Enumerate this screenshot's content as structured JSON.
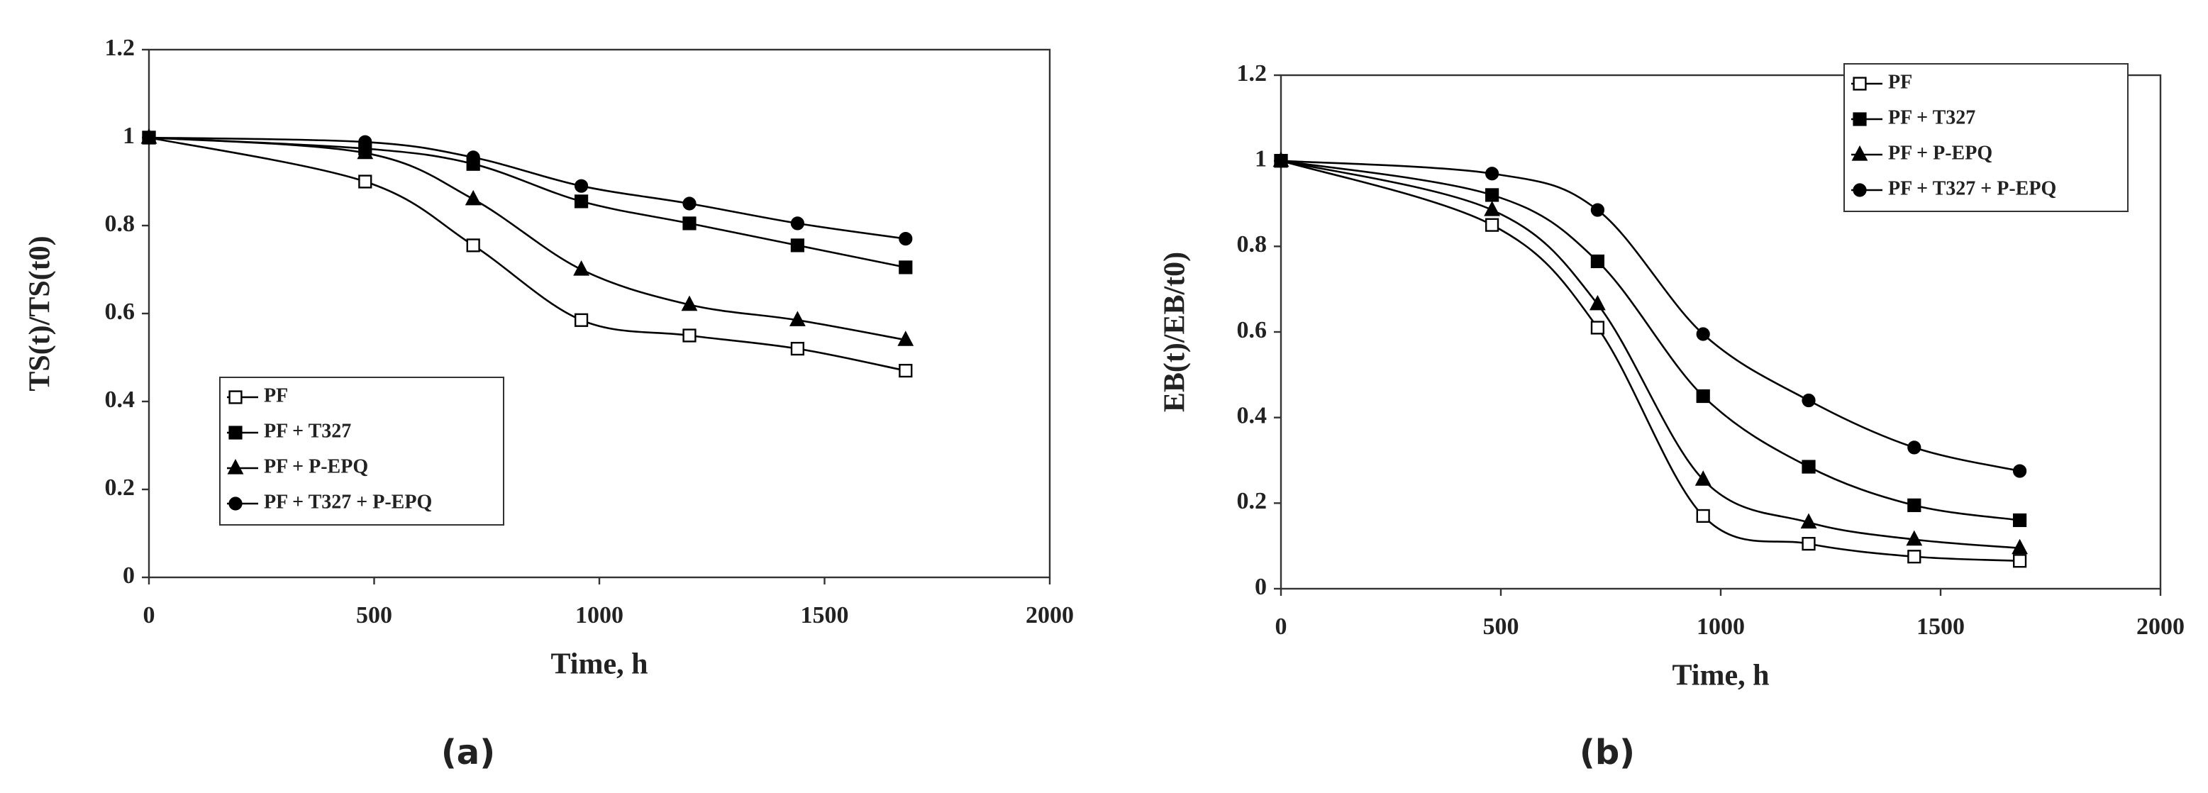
{
  "chart_data": [
    {
      "type": "line",
      "caption": "(a)",
      "x_label": "Time, h",
      "y_label": "TS(t)/TS(t0)",
      "x": [
        0,
        480,
        720,
        960,
        1200,
        1440,
        1680
      ],
      "xlim": [
        0,
        2000
      ],
      "xticks": [
        0,
        500,
        1000,
        1500,
        2000
      ],
      "ylim": [
        0,
        1.2
      ],
      "yticks": [
        0,
        0.2,
        0.4,
        0.6,
        0.8,
        1,
        1.2
      ],
      "grid": false,
      "legend_loc": "lower left",
      "series": [
        {
          "name": "PF",
          "color": "#000000",
          "marker": "open-square",
          "values": [
            1,
            0.9,
            0.755,
            0.585,
            0.55,
            0.52,
            0.47
          ]
        },
        {
          "name": "PF + T327",
          "color": "#000000",
          "marker": "square",
          "values": [
            1,
            0.975,
            0.94,
            0.855,
            0.805,
            0.755,
            0.705
          ]
        },
        {
          "name": "PF + P-EPQ",
          "color": "#000000",
          "marker": "triangle",
          "values": [
            1,
            0.965,
            0.86,
            0.7,
            0.62,
            0.585,
            0.54
          ]
        },
        {
          "name": "PF + T327 + P-EPQ",
          "color": "#000000",
          "marker": "circle",
          "values": [
            1,
            0.99,
            0.955,
            0.89,
            0.85,
            0.805,
            0.77
          ]
        }
      ]
    },
    {
      "type": "line",
      "caption": "(b)",
      "x_label": "Time, h",
      "y_label": "EB(t)/EB/t0)",
      "x": [
        0,
        480,
        720,
        960,
        1200,
        1440,
        1680
      ],
      "xlim": [
        0,
        2000
      ],
      "xticks": [
        0,
        500,
        1000,
        1500,
        2000
      ],
      "ylim": [
        0,
        1.2
      ],
      "yticks": [
        0,
        0.2,
        0.4,
        0.6,
        0.8,
        1,
        1.2
      ],
      "grid": false,
      "legend_loc": "upper right",
      "series": [
        {
          "name": "PF",
          "color": "#000000",
          "marker": "open-square",
          "values": [
            1,
            0.85,
            0.61,
            0.17,
            0.105,
            0.075,
            0.065
          ]
        },
        {
          "name": "PF + T327",
          "color": "#000000",
          "marker": "square",
          "values": [
            1,
            0.92,
            0.765,
            0.45,
            0.285,
            0.195,
            0.16
          ]
        },
        {
          "name": "PF + P-EPQ",
          "color": "#000000",
          "marker": "triangle",
          "values": [
            1,
            0.885,
            0.665,
            0.255,
            0.155,
            0.115,
            0.095
          ]
        },
        {
          "name": "PF + T327 + P-EPQ",
          "color": "#000000",
          "marker": "circle",
          "values": [
            1,
            0.97,
            0.885,
            0.595,
            0.44,
            0.33,
            0.275
          ]
        }
      ]
    }
  ]
}
